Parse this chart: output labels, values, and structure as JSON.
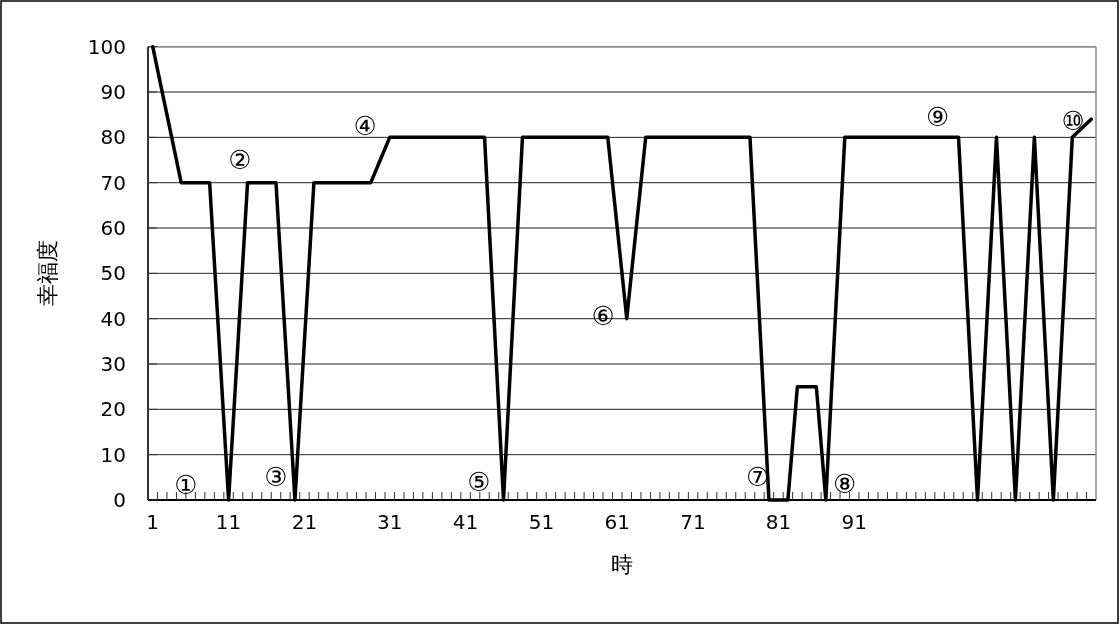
{
  "chart_data": {
    "type": "line",
    "xlabel": "時",
    "ylabel": "幸福度",
    "color": "#000000",
    "grid": "y",
    "ylim": [
      0,
      100
    ],
    "yticks": [
      0,
      10,
      20,
      30,
      40,
      50,
      60,
      70,
      80,
      90,
      100
    ],
    "categories": [
      "1",
      null,
      null,
      null,
      null,
      null,
      null,
      null,
      "11",
      null,
      null,
      null,
      null,
      null,
      null,
      null,
      "21",
      null,
      null,
      null,
      null,
      null,
      null,
      null,
      null,
      "31",
      null,
      null,
      null,
      null,
      null,
      null,
      null,
      "41",
      null,
      null,
      null,
      null,
      null,
      null,
      null,
      "51",
      null,
      null,
      null,
      null,
      null,
      null,
      null,
      "61",
      null,
      null,
      null,
      null,
      null,
      null,
      null,
      "71",
      null,
      null,
      null,
      null,
      null,
      null,
      null,
      null,
      "81",
      null,
      null,
      null,
      null,
      null,
      null,
      null,
      "91",
      null,
      null,
      null,
      null,
      null,
      null,
      null,
      null,
      null,
      null,
      null,
      null,
      null,
      null,
      null,
      null,
      null,
      null,
      null,
      null,
      null,
      null,
      null,
      null,
      null
    ],
    "values": [
      100,
      90,
      80,
      70,
      70,
      70,
      70,
      35,
      0,
      35,
      70,
      70,
      70,
      70,
      35,
      0,
      35,
      70,
      70,
      70,
      70,
      70,
      70,
      70,
      75,
      80,
      80,
      80,
      80,
      80,
      80,
      80,
      80,
      80,
      80,
      80,
      40,
      0,
      40,
      80,
      80,
      80,
      80,
      80,
      80,
      80,
      80,
      80,
      80,
      60,
      40,
      60,
      80,
      80,
      80,
      80,
      80,
      80,
      80,
      80,
      80,
      80,
      80,
      80,
      40,
      0,
      0,
      0,
      25,
      25,
      25,
      0,
      40,
      80,
      80,
      80,
      80,
      80,
      80,
      80,
      80,
      80,
      80,
      80,
      80,
      80,
      40,
      0,
      40,
      80,
      40,
      0,
      40,
      80,
      40,
      0,
      40,
      80,
      82,
      84
    ],
    "annotations": [
      "①",
      "②",
      "③",
      "④",
      "⑤",
      "⑥",
      "⑦",
      "⑧",
      "⑨",
      "⑩"
    ]
  }
}
